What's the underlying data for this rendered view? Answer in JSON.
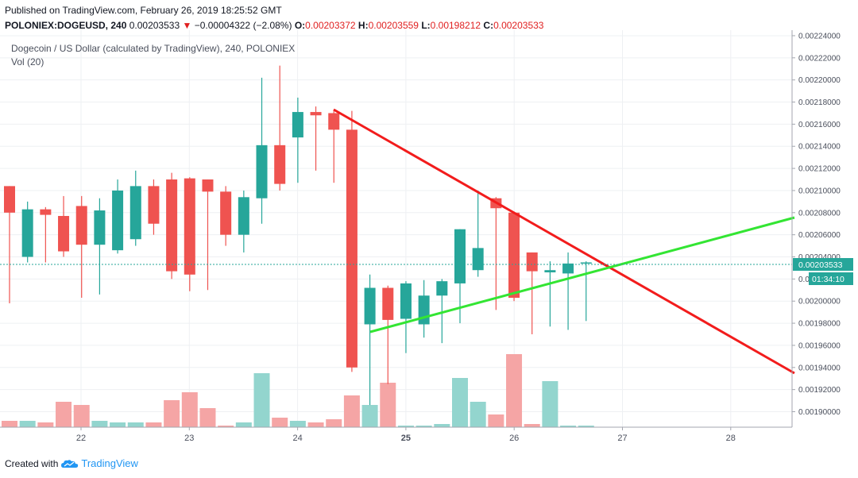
{
  "header": {
    "published": "Published on TradingView.com, February 26, 2019 18:25:52 GMT",
    "symbol": "POLONIEX:DOGEUSD, 240",
    "last": "0.00203533",
    "change_arrow": "▼",
    "change": "−0.00004322 (−2.08%)",
    "o_label": "O:",
    "o_val": "0.00203372",
    "h_label": "H:",
    "h_val": "0.00203559",
    "l_label": "L:",
    "l_val": "0.00198212",
    "c_label": "C:",
    "c_val": "0.00203533"
  },
  "footer": {
    "created_with": "Created with",
    "brand": "TradingView"
  },
  "colors": {
    "up": "#26a69a",
    "down": "#ef5350",
    "up_vol": "#93d5ce",
    "down_vol": "#f5a5a5",
    "resistance": "#f21c1c",
    "support": "#33e533",
    "price_line": "#26a69a",
    "tag_bg": "#26a69a"
  },
  "chart_data": {
    "type": "candlestick",
    "title": "Dogecoin / US Dollar (calculated by TradingView), 240, POLONIEX",
    "indicator": "Vol (20)",
    "x_ticks": [
      "22",
      "23",
      "24",
      "25",
      "26",
      "27",
      "28"
    ],
    "y_ticks": [
      "0.00224000",
      "0.00222000",
      "0.00220000",
      "0.00218000",
      "0.00216000",
      "0.00214000",
      "0.00212000",
      "0.00210000",
      "0.00208000",
      "0.00206000",
      "0.00204000",
      "0.00202000",
      "0.00200000",
      "0.00198000",
      "0.00196000",
      "0.00194000",
      "0.00192000",
      "0.00190000"
    ],
    "ylim": [
      0.001886,
      0.002245
    ],
    "last_price_label": "0.00203533",
    "countdown_label": "01:34:10",
    "candles": [
      {
        "o": 0.002104,
        "h": 0.002104,
        "l": 0.001998,
        "c": 0.00208
      },
      {
        "o": 0.00204,
        "h": 0.00209,
        "l": 0.002035,
        "c": 0.002083
      },
      {
        "o": 0.002083,
        "h": 0.002085,
        "l": 0.002035,
        "c": 0.002078
      },
      {
        "o": 0.002077,
        "h": 0.002095,
        "l": 0.00204,
        "c": 0.002045
      },
      {
        "o": 0.002086,
        "h": 0.002095,
        "l": 0.002003,
        "c": 0.002051
      },
      {
        "o": 0.002051,
        "h": 0.002093,
        "l": 0.002006,
        "c": 0.002082
      },
      {
        "o": 0.002046,
        "h": 0.00211,
        "l": 0.002043,
        "c": 0.0021
      },
      {
        "o": 0.002056,
        "h": 0.002118,
        "l": 0.00205,
        "c": 0.002104
      },
      {
        "o": 0.002104,
        "h": 0.00211,
        "l": 0.00206,
        "c": 0.00207
      },
      {
        "o": 0.00211,
        "h": 0.002116,
        "l": 0.00202,
        "c": 0.002027
      },
      {
        "o": 0.002111,
        "h": 0.002112,
        "l": 0.002009,
        "c": 0.002024
      },
      {
        "o": 0.00211,
        "h": 0.00211,
        "l": 0.00201,
        "c": 0.002099
      },
      {
        "o": 0.002099,
        "h": 0.002104,
        "l": 0.00205,
        "c": 0.00206
      },
      {
        "o": 0.00206,
        "h": 0.0021,
        "l": 0.002044,
        "c": 0.002094
      },
      {
        "o": 0.002093,
        "h": 0.002202,
        "l": 0.00207,
        "c": 0.002141
      },
      {
        "o": 0.002141,
        "h": 0.002213,
        "l": 0.0021,
        "c": 0.002106
      },
      {
        "o": 0.002148,
        "h": 0.002184,
        "l": 0.002107,
        "c": 0.002171
      },
      {
        "o": 0.002171,
        "h": 0.002176,
        "l": 0.002118,
        "c": 0.002168
      },
      {
        "o": 0.00217,
        "h": 0.002173,
        "l": 0.002107,
        "c": 0.002155
      },
      {
        "o": 0.002155,
        "h": 0.002172,
        "l": 0.001936,
        "c": 0.00194
      },
      {
        "o": 0.001979,
        "h": 0.002024,
        "l": 0.001906,
        "c": 0.002012
      },
      {
        "o": 0.002012,
        "h": 0.002014,
        "l": 0.001925,
        "c": 0.001983
      },
      {
        "o": 0.001984,
        "h": 0.002018,
        "l": 0.001953,
        "c": 0.002016
      },
      {
        "o": 0.001979,
        "h": 0.002019,
        "l": 0.001967,
        "c": 0.002005
      },
      {
        "o": 0.002005,
        "h": 0.00202,
        "l": 0.001962,
        "c": 0.002018
      },
      {
        "o": 0.002016,
        "h": 0.002065,
        "l": 0.00198,
        "c": 0.002065
      },
      {
        "o": 0.002028,
        "h": 0.0021,
        "l": 0.002022,
        "c": 0.002048
      },
      {
        "o": 0.002093,
        "h": 0.002094,
        "l": 0.001992,
        "c": 0.002084
      },
      {
        "o": 0.00208,
        "h": 0.002081,
        "l": 0.002,
        "c": 0.002003
      },
      {
        "o": 0.002044,
        "h": 0.002044,
        "l": 0.00197,
        "c": 0.002027
      },
      {
        "o": 0.002026,
        "h": 0.002036,
        "l": 0.001977,
        "c": 0.002028
      },
      {
        "o": 0.002025,
        "h": 0.002044,
        "l": 0.001974,
        "c": 0.002034
      },
      {
        "o": 0.002034,
        "h": 0.002036,
        "l": 0.001982,
        "c": 0.002035
      }
    ],
    "volume_levels": [
      0.04,
      0.04,
      0.03,
      0.16,
      0.14,
      0.04,
      0.03,
      0.03,
      0.03,
      0.17,
      0.22,
      0.12,
      0.01,
      0.03,
      0.34,
      0.06,
      0.04,
      0.03,
      0.05,
      0.2,
      0.14,
      0.28,
      0.01,
      0.01,
      0.02,
      0.31,
      0.16,
      0.08,
      0.46,
      0.02,
      0.29,
      0.01,
      0.01
    ]
  }
}
